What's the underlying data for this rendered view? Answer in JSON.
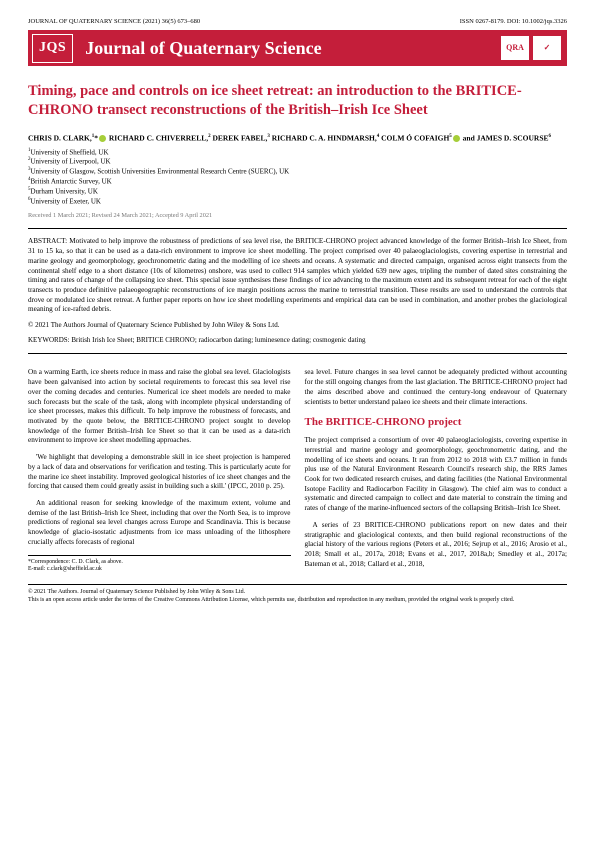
{
  "header": {
    "left": "JOURNAL OF QUATERNARY SCIENCE (2021) 36(5) 673–680",
    "right": "ISSN 0267-8179. DOI: 10.1002/jqs.3326"
  },
  "banner": {
    "badge": "JQS",
    "title": "Journal of Quaternary Science",
    "logo1": "QRA",
    "logo2": "✓"
  },
  "title": "Timing, pace and controls on ice sheet retreat: an introduction to the BRITICE-CHRONO transect reconstructions of the British–Irish Ice Sheet",
  "authors_html": "CHRIS D. CLARK,<sup>1</sup>*<span class='orcid'></span> RICHARD C. CHIVERRELL,<sup>2</sup> DEREK FABEL,<sup>3</sup> RICHARD C. A. HINDMARSH,<sup>4</sup> COLM Ó COFAIGH<sup>5</sup><span class='orcid'></span> and JAMES D. SCOURSE<sup>6</sup>",
  "affiliations": [
    "<sup>1</sup>University of Sheffield, UK",
    "<sup>2</sup>University of Liverpool, UK",
    "<sup>3</sup>University of Glasgow, Scottish Universities Environmental Research Centre (SUERC), UK",
    "<sup>4</sup>British Antarctic Survey, UK",
    "<sup>5</sup>Durham University, UK",
    "<sup>6</sup>University of Exeter, UK"
  ],
  "dates": "Received 1 March 2021; Revised 24 March 2021; Accepted 9 April 2021",
  "abstract": "ABSTRACT: Motivated to help improve the robustness of predictions of sea level rise, the BRITICE-CHRONO project advanced knowledge of the former British–Irish Ice Sheet, from 31 to 15 ka, so that it can be used as a data-rich environment to improve ice sheet modelling. The project comprised over 40 palaeoglaciologists, covering expertise in terrestrial and marine geology and geomorphology, geochronometric dating and the modelling of ice sheets and oceans. A systematic and directed campaign, organised across eight transects from the continental shelf edge to a short distance (10s of kilometres) onshore, was used to collect 914 samples which yielded 639 new ages, tripling the number of dated sites constraining the timing and rates of change of the collapsing ice sheet. This special issue synthesises these findings of ice advancing to the maximum extent and its subsequent retreat for each of the eight transects to produce definitive palaeogeographic reconstructions of ice margin positions across the marine to terrestrial transition. These results are used to understand the controls that drove or modulated ice sheet retreat. A further paper reports on how ice sheet modelling experiments and empirical data can be used in combination, and another probes the glaciological meaning of ice-rafted debris.",
  "copyright": "© 2021 The Authors Journal of Quaternary Science Published by John Wiley & Sons Ltd.",
  "keywords": "KEYWORDS: British Irish Ice Sheet; BRITICE CHRONO; radiocarbon dating; luminesence dating; cosmogenic dating",
  "col1": {
    "p1": "On a warming Earth, ice sheets reduce in mass and raise the global sea level. Glaciologists have been galvanised into action by societal requirements to forecast this sea level rise over the coming decades and centuries. Numerical ice sheet models are needed to make such forecasts but the scale of the task, along with incomplete physical understanding of ice sheet processes, makes this difficult. To help improve the robustness of forecasts, and motivated by the quote below, the BRITICE-CHRONO project sought to develop knowledge of the former British–Irish Ice Sheet so that it can be used as a data-rich environment to improve ice sheet modelling approaches.",
    "p2": "'We highlight that developing a demonstrable skill in ice sheet projection is hampered by a lack of data and observations for verification and testing. This is particularly acute for the marine ice sheet instability. Improved geological histories of ice sheet changes and the forcing that caused them could greatly assist in building such a skill.' (IPCC, 2010 p. 25).",
    "p3": "An additional reason for seeking knowledge of the maximum extent, volume and demise of the last British–Irish Ice Sheet, including that over the North Sea, is to improve predictions of regional sea level changes across Europe and Scandinavia. This is because knowledge of glacio-isostatic adjustments from ice mass unloading of the lithosphere crucially affects forecasts of regional",
    "footnote": "*Correspondence: C. D. Clark, as above.\nE-mail: c.clark@sheffield.ac.uk"
  },
  "col2": {
    "p1": "sea level. Future changes in sea level cannot be adequately predicted without accounting for the still ongoing changes from the last glaciation. The BRITICE-CHRONO project had the aims described above and continued the century-long endeavour of Quaternary scientists to better understand palaeo ice sheets and their climate interactions.",
    "heading": "The BRITICE-CHRONO project",
    "p2": "The project comprised a consortium of over 40 palaeoglaciologists, covering expertise in terrestrial and marine geology and geomorphology, geochronometric dating, and the modelling of ice sheets and oceans. It ran from 2012 to 2018 with £3.7 million in funds plus use of the Natural Environment Research Council's research ship, the RRS James Cook for two dedicated research cruises, and dating facilities (the National Environmental Isotope Facility and Radiocarbon Facility in Glasgow). The chief aim was to conduct a systematic and directed campaign to collect and date material to constrain the timing and rates of change of the marine-influenced sectors of the collapsing British–Irish Ice Sheet.",
    "p3": "A series of 23 BRITICE-CHRONO publications report on new dates and their stratigraphic and glaciological contexts, and then build regional reconstructions of the glacial history of the various regions (Peters et al., 2016; Sejrup et al., 2016; Arosio et al., 2018; Small et al., 2017a, 2018; Evans et al., 2017, 2018a,b; Smedley et al., 2017a; Bateman et al., 2018; Callard et al., 2018,"
  },
  "footer": {
    "line1": "© 2021 The Authors. Journal of Quaternary Science Published by John Wiley & Sons Ltd.",
    "line2": "This is an open access article under the terms of the Creative Commons Attribution License, which permits use, distribution and reproduction in any medium, provided the original work is properly cited."
  },
  "colors": {
    "brand": "#c41e3a",
    "orcid": "#a6ce39",
    "text": "#000000",
    "bg": "#ffffff"
  }
}
